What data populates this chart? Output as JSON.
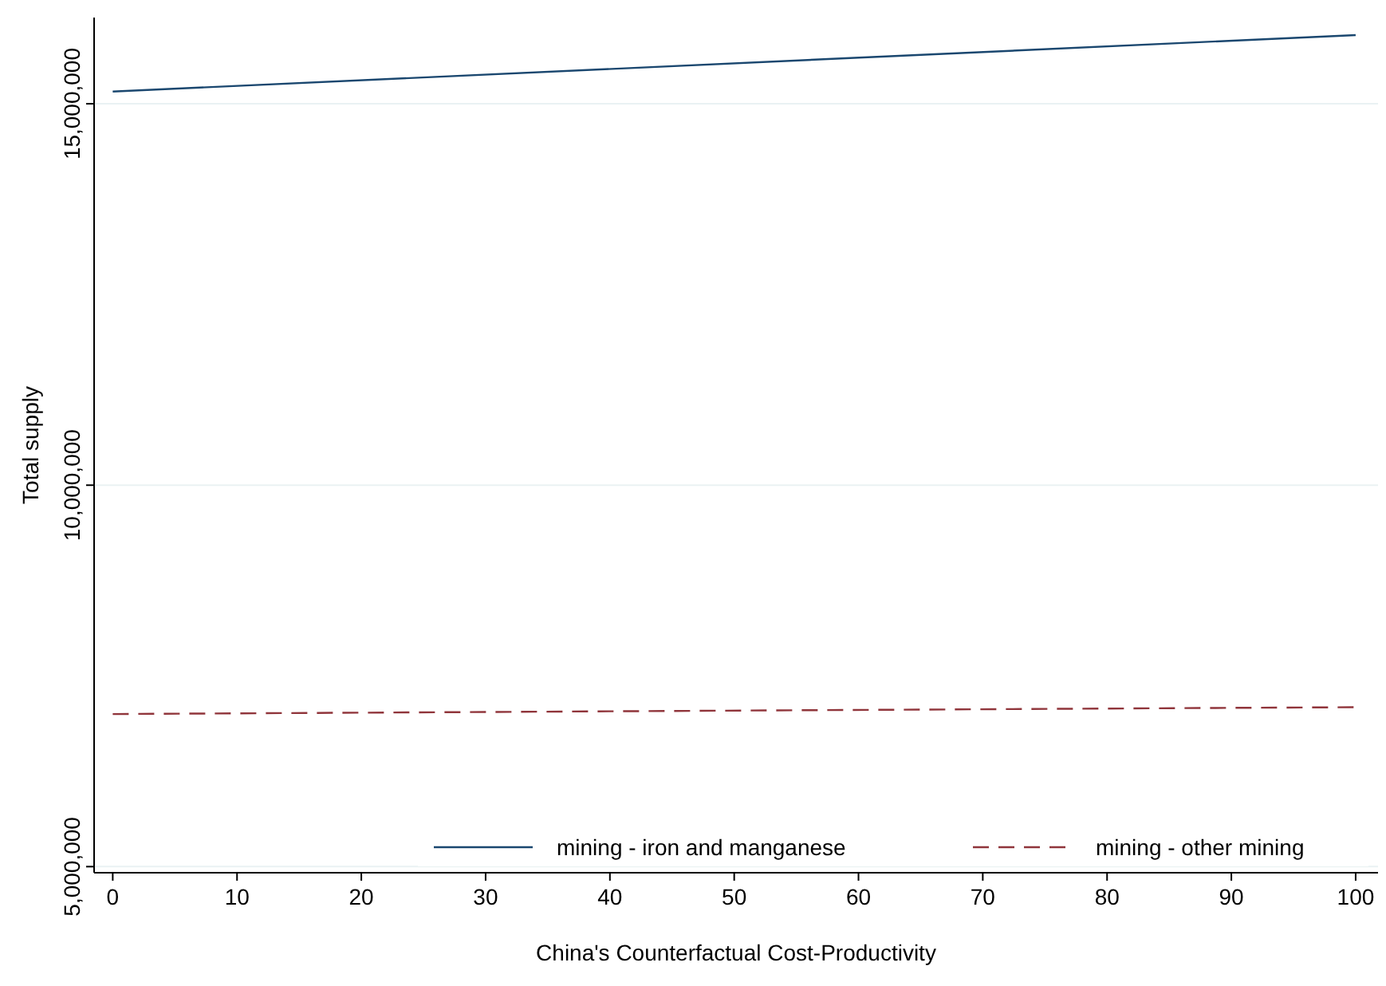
{
  "chart_data": {
    "type": "line",
    "xlabel": "China's Counterfactual Cost-Productivity",
    "ylabel": "Total supply",
    "x": [
      0,
      100
    ],
    "series": [
      {
        "name": "mining - iron and manganese",
        "color": "#1a476f",
        "values": [
          15160000,
          15900000
        ],
        "line_style": "solid"
      },
      {
        "name": "mining - other mining",
        "color": "#90353b",
        "values": [
          7000000,
          7090000
        ],
        "line_style": "dashed"
      }
    ],
    "xlim": [
      -1.5,
      101.8
    ],
    "xticks": [
      0,
      10,
      20,
      30,
      40,
      50,
      60,
      70,
      80,
      90,
      100
    ],
    "ylim": [
      4920000,
      16130000
    ],
    "yticks": [
      {
        "value": 5000000,
        "label": "5,000,000"
      },
      {
        "value": 10000000,
        "label": "10,000,000"
      },
      {
        "value": 15000000,
        "label": "15,000,000"
      }
    ],
    "grid": "y",
    "legend": "bottom",
    "marker": "none"
  }
}
